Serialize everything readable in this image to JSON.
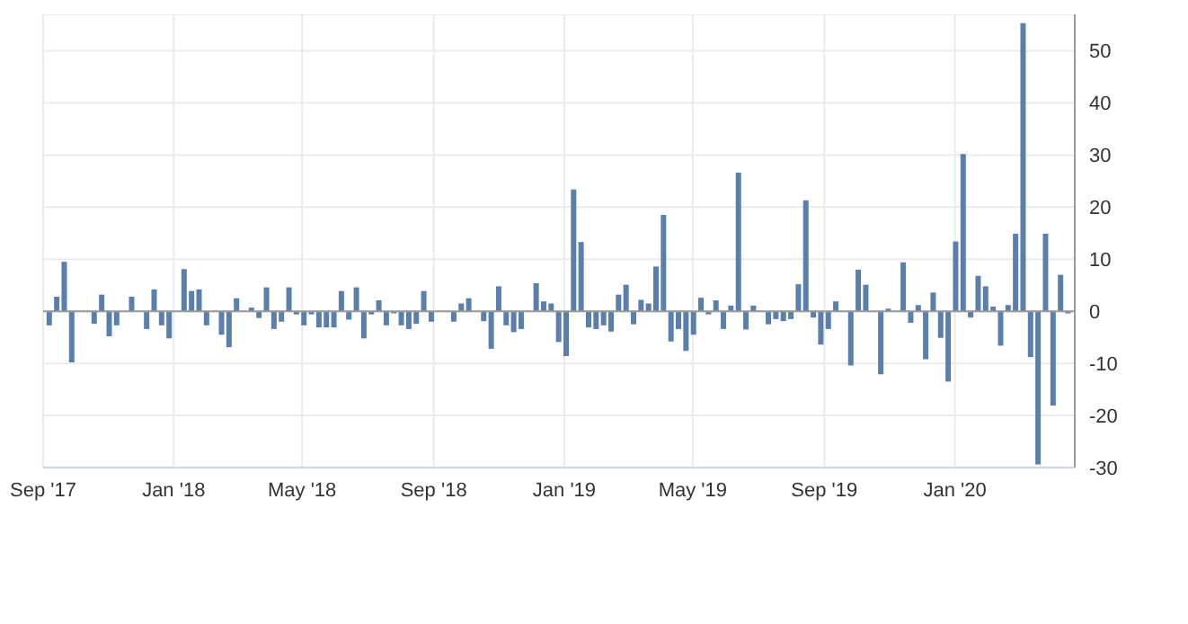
{
  "chart_data": {
    "type": "bar",
    "color": "#5a7fad",
    "x": [
      "2017-09-06",
      "2017-09-13",
      "2017-09-20",
      "2017-09-27",
      "2017-10-04",
      "2017-10-11",
      "2017-10-18",
      "2017-10-25",
      "2017-11-01",
      "2017-11-08",
      "2017-11-15",
      "2017-11-22",
      "2017-11-29",
      "2017-12-06",
      "2017-12-13",
      "2017-12-20",
      "2017-12-27",
      "2018-01-03",
      "2018-01-10",
      "2018-01-17",
      "2018-01-24",
      "2018-01-31",
      "2018-02-07",
      "2018-02-14",
      "2018-02-21",
      "2018-02-28",
      "2018-03-07",
      "2018-03-14",
      "2018-03-21",
      "2018-03-28",
      "2018-04-04",
      "2018-04-11",
      "2018-04-18",
      "2018-04-25",
      "2018-05-02",
      "2018-05-09",
      "2018-05-16",
      "2018-05-23",
      "2018-05-30",
      "2018-06-06",
      "2018-06-13",
      "2018-06-20",
      "2018-06-27",
      "2018-07-04",
      "2018-07-11",
      "2018-07-18",
      "2018-07-25",
      "2018-08-01",
      "2018-08-08",
      "2018-08-15",
      "2018-08-22",
      "2018-08-29",
      "2018-09-05",
      "2018-09-12",
      "2018-09-19",
      "2018-09-26",
      "2018-10-03",
      "2018-10-10",
      "2018-10-17",
      "2018-10-24",
      "2018-10-31",
      "2018-11-07",
      "2018-11-14",
      "2018-11-21",
      "2018-11-28",
      "2018-12-05",
      "2018-12-12",
      "2018-12-19",
      "2018-12-26",
      "2019-01-02",
      "2019-01-09",
      "2019-01-16",
      "2019-01-23",
      "2019-01-30",
      "2019-02-06",
      "2019-02-13",
      "2019-02-20",
      "2019-02-27",
      "2019-03-06",
      "2019-03-13",
      "2019-03-20",
      "2019-03-27",
      "2019-04-03",
      "2019-04-10",
      "2019-04-17",
      "2019-04-24",
      "2019-05-01",
      "2019-05-08",
      "2019-05-15",
      "2019-05-22",
      "2019-05-29",
      "2019-06-05",
      "2019-06-12",
      "2019-06-19",
      "2019-06-26",
      "2019-07-03",
      "2019-07-10",
      "2019-07-17",
      "2019-07-24",
      "2019-07-31",
      "2019-08-07",
      "2019-08-14",
      "2019-08-21",
      "2019-08-28",
      "2019-09-04",
      "2019-09-11",
      "2019-09-18",
      "2019-09-25",
      "2019-10-02",
      "2019-10-09",
      "2019-10-16",
      "2019-10-23",
      "2019-10-30",
      "2019-11-06",
      "2019-11-13",
      "2019-11-20",
      "2019-11-27",
      "2019-12-04",
      "2019-12-11",
      "2019-12-18",
      "2019-12-25",
      "2020-01-01",
      "2020-01-08",
      "2020-01-15",
      "2020-01-22",
      "2020-01-29",
      "2020-02-05",
      "2020-02-12",
      "2020-02-19",
      "2020-02-26",
      "2020-03-04",
      "2020-03-11",
      "2020-03-18",
      "2020-03-25",
      "2020-04-01",
      "2020-04-08",
      "2020-04-15"
    ],
    "values": [
      -2.7,
      2.8,
      9.5,
      -9.8,
      null,
      null,
      -2.4,
      3.2,
      -4.8,
      -2.7,
      0,
      2.8,
      0,
      -3.4,
      4.2,
      -2.7,
      -5.2,
      null,
      8.1,
      3.9,
      4.2,
      -2.7,
      null,
      -4.5,
      -6.9,
      2.5,
      null,
      0.7,
      -1.3,
      4.6,
      -3.4,
      -2.0,
      4.6,
      -0.6,
      -2.7,
      -0.6,
      -3.1,
      -3.1,
      -3.1,
      3.9,
      -1.6,
      4.6,
      -5.2,
      -0.6,
      2.1,
      -2.7,
      -0.4,
      -2.7,
      -3.4,
      -2.4,
      3.9,
      -2.0,
      0,
      0,
      -2.0,
      1.5,
      2.5,
      0,
      -1.9,
      -7.2,
      4.8,
      -2.7,
      -4.0,
      -3.4,
      0,
      5.4,
      1.9,
      1.5,
      -5.9,
      -8.6,
      23.4,
      13.3,
      -3.1,
      -3.4,
      -2.7,
      -3.9,
      3.2,
      5.1,
      -2.5,
      2.2,
      1.5,
      8.6,
      18.5,
      -5.8,
      -3.4,
      -7.6,
      -4.5,
      2.6,
      -0.6,
      2.1,
      -3.4,
      1.1,
      26.6,
      -3.5,
      1.1,
      0,
      -2.5,
      -1.5,
      -1.9,
      -1.5,
      5.2,
      21.3,
      -1.2,
      -6.4,
      -3.4,
      1.9,
      0,
      -10.4,
      8.0,
      5.1,
      null,
      -12.1,
      0.5,
      0,
      9.4,
      -2.2,
      1.2,
      -9.2,
      3.6,
      -5.1,
      -13.5,
      13.4,
      30.2,
      -1.2,
      6.8,
      4.8,
      0.9,
      -6.6,
      1.2,
      14.9,
      55.3,
      -8.8,
      -29.4,
      14.9,
      -18.1,
      7.0,
      -0.4
    ],
    "xlim": [
      "2017-09-01",
      "2020-04-22"
    ],
    "xticks": [
      {
        "value": "2017-09-01",
        "label": "Sep '17"
      },
      {
        "value": "2018-01-01",
        "label": "Jan '18"
      },
      {
        "value": "2018-05-01",
        "label": "May '18"
      },
      {
        "value": "2018-09-01",
        "label": "Sep '18"
      },
      {
        "value": "2019-01-01",
        "label": "Jan '19"
      },
      {
        "value": "2019-05-01",
        "label": "May '19"
      },
      {
        "value": "2019-09-01",
        "label": "Sep '19"
      },
      {
        "value": "2020-01-01",
        "label": "Jan '20"
      }
    ],
    "ylim": [
      -30,
      57
    ],
    "yticks": [
      -30,
      -20,
      -10,
      0,
      10,
      20,
      30,
      40,
      50
    ],
    "grid": true
  }
}
